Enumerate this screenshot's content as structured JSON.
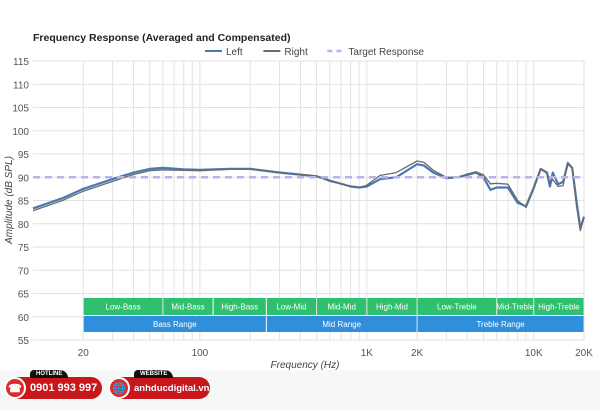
{
  "chart_data": {
    "type": "line",
    "title": "Frequency Response (Averaged and Compensated)",
    "xlabel": "Frequency (Hz)",
    "ylabel": "Amplitude (dB SPL)",
    "xscale": "log",
    "xlim": [
      10,
      20000
    ],
    "ylim": [
      55,
      115
    ],
    "yticks": [
      55,
      60,
      65,
      70,
      75,
      80,
      85,
      90,
      95,
      100,
      105,
      110,
      115
    ],
    "xticks": [
      {
        "v": 20,
        "label": "20"
      },
      {
        "v": 100,
        "label": "100"
      },
      {
        "v": 1000,
        "label": "1K"
      },
      {
        "v": 2000,
        "label": "2K"
      },
      {
        "v": 10000,
        "label": "10K"
      },
      {
        "v": 20000,
        "label": "20K"
      }
    ],
    "legend": "top-center",
    "series": [
      {
        "name": "Left",
        "color": "#4a78b5",
        "x": [
          10,
          15,
          20,
          30,
          40,
          50,
          60,
          80,
          100,
          150,
          200,
          300,
          500,
          600,
          800,
          900,
          1000,
          1200,
          1500,
          2000,
          2200,
          2500,
          3000,
          3500,
          4000,
          4500,
          5000,
          5500,
          6000,
          7000,
          8000,
          9000,
          10000,
          11000,
          12000,
          12500,
          13000,
          14000,
          15000,
          16000,
          17000,
          18000,
          19000,
          20000
        ],
        "y": [
          83.3,
          85.5,
          87.5,
          89.6,
          91,
          91.8,
          92,
          91.7,
          91.6,
          91.8,
          91.8,
          91,
          90.2,
          89.3,
          88,
          87.8,
          88,
          89.6,
          90,
          92.8,
          92.5,
          91,
          89.8,
          90,
          90.5,
          91,
          90,
          87.3,
          87.8,
          87.8,
          84.5,
          83.8,
          87.8,
          91.8,
          91,
          88,
          91,
          88.5,
          89,
          93,
          92,
          85,
          79,
          81.5
        ]
      },
      {
        "name": "Right",
        "color": "#6b6b6b",
        "x": [
          10,
          15,
          20,
          30,
          40,
          50,
          60,
          80,
          100,
          150,
          200,
          300,
          500,
          600,
          800,
          900,
          1000,
          1200,
          1500,
          2000,
          2200,
          2500,
          3000,
          3500,
          4000,
          4500,
          5000,
          5500,
          6000,
          7000,
          8000,
          9000,
          10000,
          11000,
          12000,
          12500,
          13000,
          14000,
          15000,
          16000,
          17000,
          18000,
          19000,
          20000
        ],
        "y": [
          82.8,
          85,
          87,
          89.1,
          90.6,
          91.4,
          91.6,
          91.5,
          91.4,
          91.7,
          91.8,
          91.1,
          90.3,
          89.1,
          88.1,
          87.8,
          88.3,
          90.4,
          91,
          93.5,
          93.2,
          91.5,
          90,
          90,
          90.7,
          91.2,
          90.5,
          88.6,
          88.7,
          88.5,
          85,
          83.5,
          87.5,
          91.8,
          90.8,
          88.6,
          89.5,
          88,
          88.2,
          93.2,
          92,
          84,
          78.5,
          81.5
        ]
      },
      {
        "name": "Target Response",
        "color": "#b9b3ec",
        "dashed": true,
        "x": [
          10,
          20000
        ],
        "y": [
          90,
          90
        ]
      }
    ],
    "bands": [
      {
        "label": "Low-Bass",
        "from": 20,
        "to": 60,
        "row": "sub"
      },
      {
        "label": "Mid-Bass",
        "from": 60,
        "to": 120,
        "row": "sub"
      },
      {
        "label": "High-Bass",
        "from": 120,
        "to": 250,
        "row": "sub"
      },
      {
        "label": "Low-Mid",
        "from": 250,
        "to": 500,
        "row": "sub"
      },
      {
        "label": "Mid-Mid",
        "from": 500,
        "to": 1000,
        "row": "sub"
      },
      {
        "label": "High-Mid",
        "from": 1000,
        "to": 2000,
        "row": "sub"
      },
      {
        "label": "Low-Treble",
        "from": 2000,
        "to": 6000,
        "row": "sub"
      },
      {
        "label": "Mid-Treble",
        "from": 6000,
        "to": 10000,
        "row": "sub"
      },
      {
        "label": "High-Treble",
        "from": 10000,
        "to": 20000,
        "row": "sub"
      },
      {
        "label": "Bass Range",
        "from": 20,
        "to": 250,
        "row": "main"
      },
      {
        "label": "Mid Range",
        "from": 250,
        "to": 2000,
        "row": "main"
      },
      {
        "label": "Treble Range",
        "from": 2000,
        "to": 20000,
        "row": "main"
      }
    ],
    "band_colors": {
      "sub": "#2ebf6f",
      "main": "#2f8fdc"
    }
  },
  "footer": {
    "hotline_label": "HOTLINE",
    "hotline": "0901 993 997",
    "website_label": "WEBSITE",
    "website": "anhducdigital.vn"
  }
}
